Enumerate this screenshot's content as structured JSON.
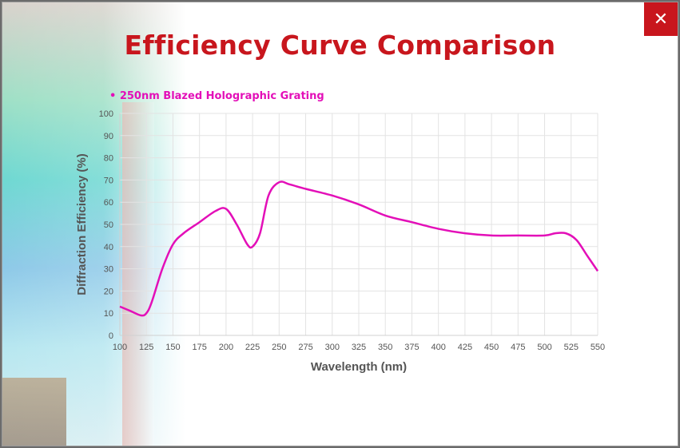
{
  "dialog": {
    "title": "Efficiency Curve Comparison",
    "close_label": "✕",
    "close_icon": "close-icon"
  },
  "colors": {
    "accent": "#c8161d",
    "series": "#e30fb8",
    "grid": "#e3e3e3",
    "axis_text": "#555555"
  },
  "chart_data": {
    "type": "line",
    "title": "",
    "xlabel": "Wavelength (nm)",
    "ylabel": "Diffraction Efficiency (%)",
    "xlim": [
      100,
      550
    ],
    "ylim": [
      0,
      100
    ],
    "x_ticks": [
      100,
      125,
      150,
      175,
      200,
      225,
      250,
      275,
      300,
      325,
      350,
      375,
      400,
      425,
      450,
      475,
      500,
      525,
      550
    ],
    "y_ticks": [
      0,
      10,
      20,
      30,
      40,
      50,
      60,
      70,
      80,
      90,
      100
    ],
    "grid": true,
    "legend_position": "top-left",
    "series": [
      {
        "name": "250nm Blazed Holographic Grating",
        "legend_label": "• 250nm Blazed Holographic Grating",
        "color": "#e30fb8",
        "x": [
          100,
          110,
          120,
          125,
          130,
          140,
          150,
          160,
          175,
          190,
          200,
          210,
          220,
          225,
          232,
          240,
          250,
          260,
          275,
          300,
          325,
          350,
          375,
          400,
          425,
          450,
          475,
          500,
          510,
          520,
          530,
          540,
          550
        ],
        "y": [
          13,
          11,
          9,
          10,
          15,
          30,
          41,
          46,
          51,
          56,
          57,
          50,
          41,
          40,
          46,
          63,
          69,
          68,
          66,
          63,
          59,
          54,
          51,
          48,
          46,
          45,
          45,
          45,
          46,
          46,
          43,
          36,
          29
        ]
      }
    ]
  }
}
